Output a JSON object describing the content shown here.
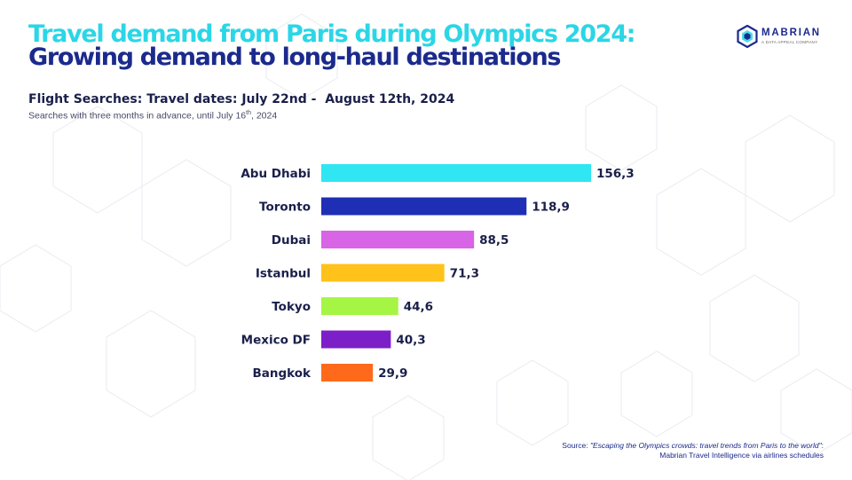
{
  "header": {
    "title_line1": "Travel demand from Paris during Olympics 2024:",
    "title_line2": "Growing demand to long-haul destinations",
    "subtitle": "Flight Searches: Travel dates: July 22nd -  August 12th, 2024",
    "note_prefix": "Searches with three months in advance, until July 16",
    "note_sup": "th",
    "note_suffix": ", 2024"
  },
  "logo": {
    "name": "MABRIAN",
    "tagline": "A DATA APPEAL COMPANY"
  },
  "source": {
    "prefix": "Source: ",
    "quote": "\"Escaping the Olympics crowds: travel trends from Paris to the world\"",
    "suffix": ":  Mabrian Travel Intelligence via airlines schedules"
  },
  "colors": {
    "title_primary": "#2bd6e6",
    "title_secondary": "#1b2a8c",
    "text_dark": "#1a1f4a"
  },
  "chart_data": {
    "type": "bar",
    "orientation": "horizontal",
    "title": "Flight Searches: Travel dates: July 22nd -  August 12th, 2024",
    "categories": [
      "Abu Dhabi",
      "Toronto",
      "Dubai",
      "Istanbul",
      "Tokyo",
      "Mexico DF",
      "Bangkok"
    ],
    "values": [
      156.3,
      118.9,
      88.5,
      71.3,
      44.6,
      40.3,
      29.9
    ],
    "value_labels": [
      "156,3",
      "118,9",
      "88,5",
      "71,3",
      "44,6",
      "40,3",
      "29,9"
    ],
    "bar_colors": [
      "#2fe6f2",
      "#1f2fb5",
      "#d864e6",
      "#ffc21a",
      "#a5f545",
      "#7d1fc9",
      "#ff6a1a"
    ],
    "xlim": [
      0,
      156.3
    ],
    "grid": false,
    "legend": "none",
    "xlabel": "",
    "ylabel": ""
  }
}
